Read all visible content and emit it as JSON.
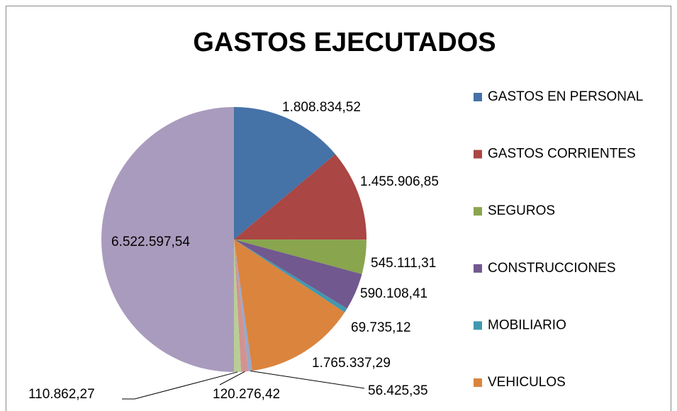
{
  "chart_data": {
    "type": "pie",
    "title": "GASTOS EJECUTADOS",
    "categories": [
      "GASTOS EN PERSONAL",
      "GASTOS CORRIENTES",
      "SEGUROS",
      "CONSTRUCCIONES",
      "MOBILIARIO",
      "VEHICULOS",
      null,
      null,
      null,
      null
    ],
    "values": [
      1808834.52,
      1455906.85,
      545111.31,
      590108.41,
      69735.12,
      1765337.29,
      56425.35,
      120276.42,
      110862.27,
      6522597.54
    ],
    "value_labels": [
      "1.808.834,52",
      "1.455.906,85",
      "545.111,31",
      "590.108,41",
      "69.735,12",
      "1.765.337,29",
      "56.425,35",
      "120.276,42",
      "110.862,27",
      "6.522.597,54"
    ],
    "colors": [
      "#4572a7",
      "#aa4643",
      "#89a54e",
      "#71588f",
      "#4198af",
      "#db843d",
      "#93a9cf",
      "#d19392",
      "#b9cd96",
      "#a99bbd"
    ],
    "legend": "right"
  }
}
